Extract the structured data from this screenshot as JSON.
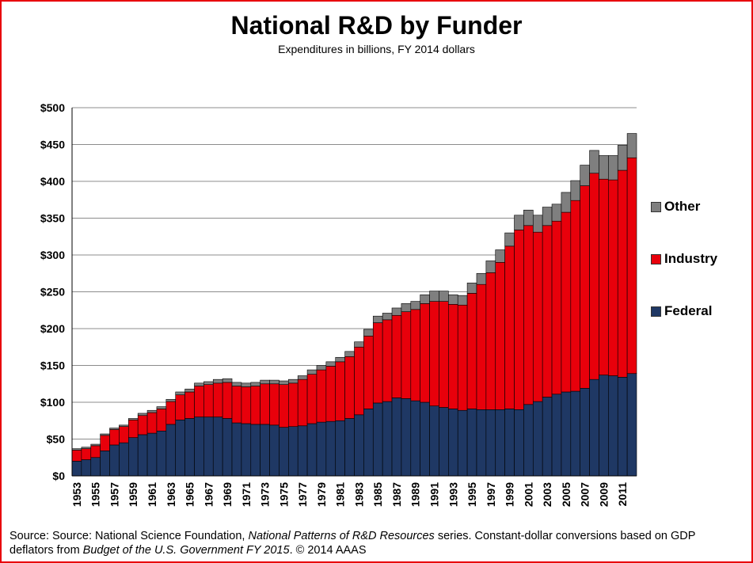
{
  "chart_data": {
    "type": "bar",
    "stacked": true,
    "title": "National R&D by Funder",
    "subtitle": "Expenditures in billions, FY 2014 dollars",
    "xlabel": "",
    "ylabel": "",
    "ylim": [
      0,
      500
    ],
    "yticks": [
      "$0",
      "$50",
      "$100",
      "$150",
      "$200",
      "$250",
      "$300",
      "$350",
      "$400",
      "$450",
      "$500"
    ],
    "ytick_values": [
      0,
      50,
      100,
      150,
      200,
      250,
      300,
      350,
      400,
      450,
      500
    ],
    "grid": true,
    "legend_position": "right",
    "categories": [
      1953,
      1954,
      1955,
      1956,
      1957,
      1958,
      1959,
      1960,
      1961,
      1962,
      1963,
      1964,
      1965,
      1966,
      1967,
      1968,
      1969,
      1970,
      1971,
      1972,
      1973,
      1974,
      1975,
      1976,
      1977,
      1978,
      1979,
      1980,
      1981,
      1982,
      1983,
      1984,
      1985,
      1986,
      1987,
      1988,
      1989,
      1990,
      1991,
      1992,
      1993,
      1994,
      1995,
      1996,
      1997,
      1998,
      1999,
      2000,
      2001,
      2002,
      2003,
      2004,
      2005,
      2006,
      2007,
      2008,
      2009,
      2010,
      2011,
      2012
    ],
    "xtick_labels": [
      "1953",
      "1955",
      "1957",
      "1959",
      "1961",
      "1963",
      "1965",
      "1967",
      "1969",
      "1971",
      "1973",
      "1975",
      "1977",
      "1979",
      "1981",
      "1983",
      "1985",
      "1987",
      "1989",
      "1991",
      "1993",
      "1995",
      "1997",
      "1999",
      "2001",
      "2003",
      "2005",
      "2007",
      "2009",
      "2011"
    ],
    "series": [
      {
        "name": "Federal",
        "color": "#1f3864",
        "values": [
          20,
          22,
          25,
          34,
          42,
          45,
          52,
          56,
          58,
          61,
          70,
          76,
          78,
          80,
          80,
          80,
          78,
          72,
          71,
          70,
          70,
          69,
          66,
          67,
          68,
          71,
          73,
          74,
          75,
          78,
          83,
          91,
          99,
          101,
          106,
          105,
          102,
          100,
          95,
          93,
          91,
          89,
          91,
          90,
          90,
          90,
          91,
          90,
          97,
          101,
          107,
          111,
          114,
          115,
          119,
          131,
          137,
          136,
          134,
          139
        ]
      },
      {
        "name": "Industry",
        "color": "#e8000b",
        "values": [
          15,
          15,
          16,
          21,
          21,
          22,
          24,
          26,
          28,
          30,
          31,
          34,
          36,
          42,
          44,
          46,
          49,
          50,
          50,
          52,
          55,
          56,
          58,
          59,
          63,
          67,
          71,
          75,
          80,
          84,
          92,
          99,
          109,
          111,
          112,
          118,
          124,
          134,
          142,
          144,
          142,
          143,
          157,
          170,
          186,
          200,
          221,
          244,
          243,
          230,
          233,
          235,
          244,
          259,
          275,
          280,
          266,
          266,
          281,
          293
        ]
      },
      {
        "name": "Other",
        "color": "#7f7f7f",
        "values": [
          2,
          2,
          2,
          2,
          2,
          2,
          2,
          3,
          3,
          3,
          3,
          4,
          4,
          4,
          4,
          5,
          5,
          5,
          5,
          5,
          5,
          5,
          5,
          5,
          5,
          6,
          6,
          6,
          6,
          7,
          7,
          9,
          9,
          9,
          10,
          11,
          11,
          12,
          14,
          14,
          13,
          13,
          14,
          15,
          16,
          17,
          18,
          20,
          21,
          23,
          25,
          23,
          27,
          27,
          28,
          31,
          32,
          33,
          34,
          33
        ]
      }
    ]
  },
  "legend": {
    "other": "Other",
    "industry": "Industry",
    "federal": "Federal"
  },
  "source": {
    "part1": "Source: Source: National Science Foundation, ",
    "italic1": "National Patterns of R&D Resources",
    "part2": " series. Constant-dollar conversions based on GDP deflators from ",
    "italic2": "Budget of the U.S. Government FY 2015",
    "part3": ". © 2014 AAAS"
  }
}
